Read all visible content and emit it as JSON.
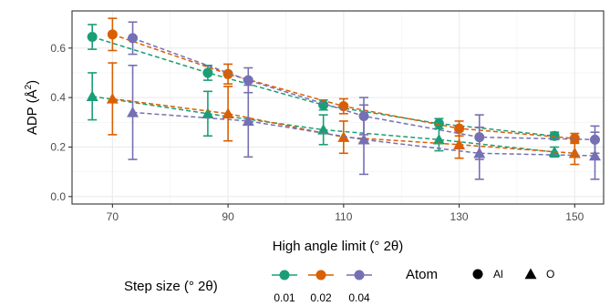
{
  "chart_data": {
    "type": "scatter",
    "title": "",
    "xlabel": "High angle limit (° 2θ)",
    "ylabel_main": "ADP (Å",
    "ylabel_sup": "2",
    "ylabel_end": ")",
    "x_ticks": [
      70,
      90,
      110,
      130,
      150
    ],
    "y_ticks": [
      0.0,
      0.2,
      0.4,
      0.6
    ],
    "y_tick_labels": [
      "0.0",
      "0.2",
      "0.4",
      "0.6"
    ],
    "xlim": [
      63,
      155
    ],
    "ylim": [
      -0.03,
      0.75
    ],
    "grid": true,
    "legend_position": "bottom",
    "step_legend": {
      "title": "Step size (° 2θ)",
      "entries": [
        {
          "label": "0.01",
          "color": "#1b9e77"
        },
        {
          "label": "0.02",
          "color": "#d95f02"
        },
        {
          "label": "0.04",
          "color": "#7570b3"
        }
      ]
    },
    "atom_legend": {
      "title": "Atom",
      "entries": [
        {
          "label": "Al",
          "shape": "circle"
        },
        {
          "label": "O",
          "shape": "triangle"
        }
      ]
    },
    "series": [
      {
        "step": "0.01",
        "atom": "Al",
        "color": "#1b9e77",
        "shape": "circle",
        "points": [
          {
            "x": 70,
            "y": 0.645,
            "ymin": 0.595,
            "ymax": 0.695
          },
          {
            "x": 90,
            "y": 0.5,
            "ymin": 0.47,
            "ymax": 0.53
          },
          {
            "x": 110,
            "y": 0.37,
            "ymin": 0.35,
            "ymax": 0.39
          },
          {
            "x": 130,
            "y": 0.295,
            "ymin": 0.275,
            "ymax": 0.315
          },
          {
            "x": 150,
            "y": 0.245,
            "ymin": 0.23,
            "ymax": 0.26
          }
        ]
      },
      {
        "step": "0.02",
        "atom": "Al",
        "color": "#d95f02",
        "shape": "circle",
        "points": [
          {
            "x": 70,
            "y": 0.655,
            "ymin": 0.59,
            "ymax": 0.72
          },
          {
            "x": 90,
            "y": 0.495,
            "ymin": 0.455,
            "ymax": 0.535
          },
          {
            "x": 110,
            "y": 0.365,
            "ymin": 0.335,
            "ymax": 0.395
          },
          {
            "x": 130,
            "y": 0.275,
            "ymin": 0.245,
            "ymax": 0.305
          },
          {
            "x": 150,
            "y": 0.235,
            "ymin": 0.215,
            "ymax": 0.255
          }
        ]
      },
      {
        "step": "0.04",
        "atom": "Al",
        "color": "#7570b3",
        "shape": "circle",
        "points": [
          {
            "x": 70,
            "y": 0.64,
            "ymin": 0.575,
            "ymax": 0.705
          },
          {
            "x": 90,
            "y": 0.47,
            "ymin": 0.42,
            "ymax": 0.52
          },
          {
            "x": 110,
            "y": 0.325,
            "ymin": 0.25,
            "ymax": 0.4
          },
          {
            "x": 130,
            "y": 0.24,
            "ymin": 0.15,
            "ymax": 0.33
          },
          {
            "x": 150,
            "y": 0.23,
            "ymin": 0.175,
            "ymax": 0.285
          }
        ]
      },
      {
        "step": "0.01",
        "atom": "O",
        "color": "#1b9e77",
        "shape": "triangle",
        "points": [
          {
            "x": 70,
            "y": 0.405,
            "ymin": 0.31,
            "ymax": 0.5
          },
          {
            "x": 90,
            "y": 0.335,
            "ymin": 0.245,
            "ymax": 0.425
          },
          {
            "x": 110,
            "y": 0.27,
            "ymin": 0.21,
            "ymax": 0.33
          },
          {
            "x": 130,
            "y": 0.23,
            "ymin": 0.185,
            "ymax": 0.275
          },
          {
            "x": 150,
            "y": 0.18,
            "ymin": 0.16,
            "ymax": 0.2
          }
        ]
      },
      {
        "step": "0.02",
        "atom": "O",
        "color": "#d95f02",
        "shape": "triangle",
        "points": [
          {
            "x": 70,
            "y": 0.395,
            "ymin": 0.25,
            "ymax": 0.54
          },
          {
            "x": 90,
            "y": 0.335,
            "ymin": 0.225,
            "ymax": 0.445
          },
          {
            "x": 110,
            "y": 0.24,
            "ymin": 0.175,
            "ymax": 0.305
          },
          {
            "x": 130,
            "y": 0.21,
            "ymin": 0.155,
            "ymax": 0.265
          },
          {
            "x": 150,
            "y": 0.175,
            "ymin": 0.13,
            "ymax": 0.22
          }
        ]
      },
      {
        "step": "0.04",
        "atom": "O",
        "color": "#7570b3",
        "shape": "triangle",
        "points": [
          {
            "x": 70,
            "y": 0.34,
            "ymin": 0.15,
            "ymax": 0.53
          },
          {
            "x": 90,
            "y": 0.305,
            "ymin": 0.16,
            "ymax": 0.45
          },
          {
            "x": 110,
            "y": 0.23,
            "ymin": 0.09,
            "ymax": 0.37
          },
          {
            "x": 130,
            "y": 0.175,
            "ymin": 0.07,
            "ymax": 0.28
          },
          {
            "x": 150,
            "y": 0.165,
            "ymin": 0.07,
            "ymax": 0.26
          }
        ]
      }
    ]
  }
}
